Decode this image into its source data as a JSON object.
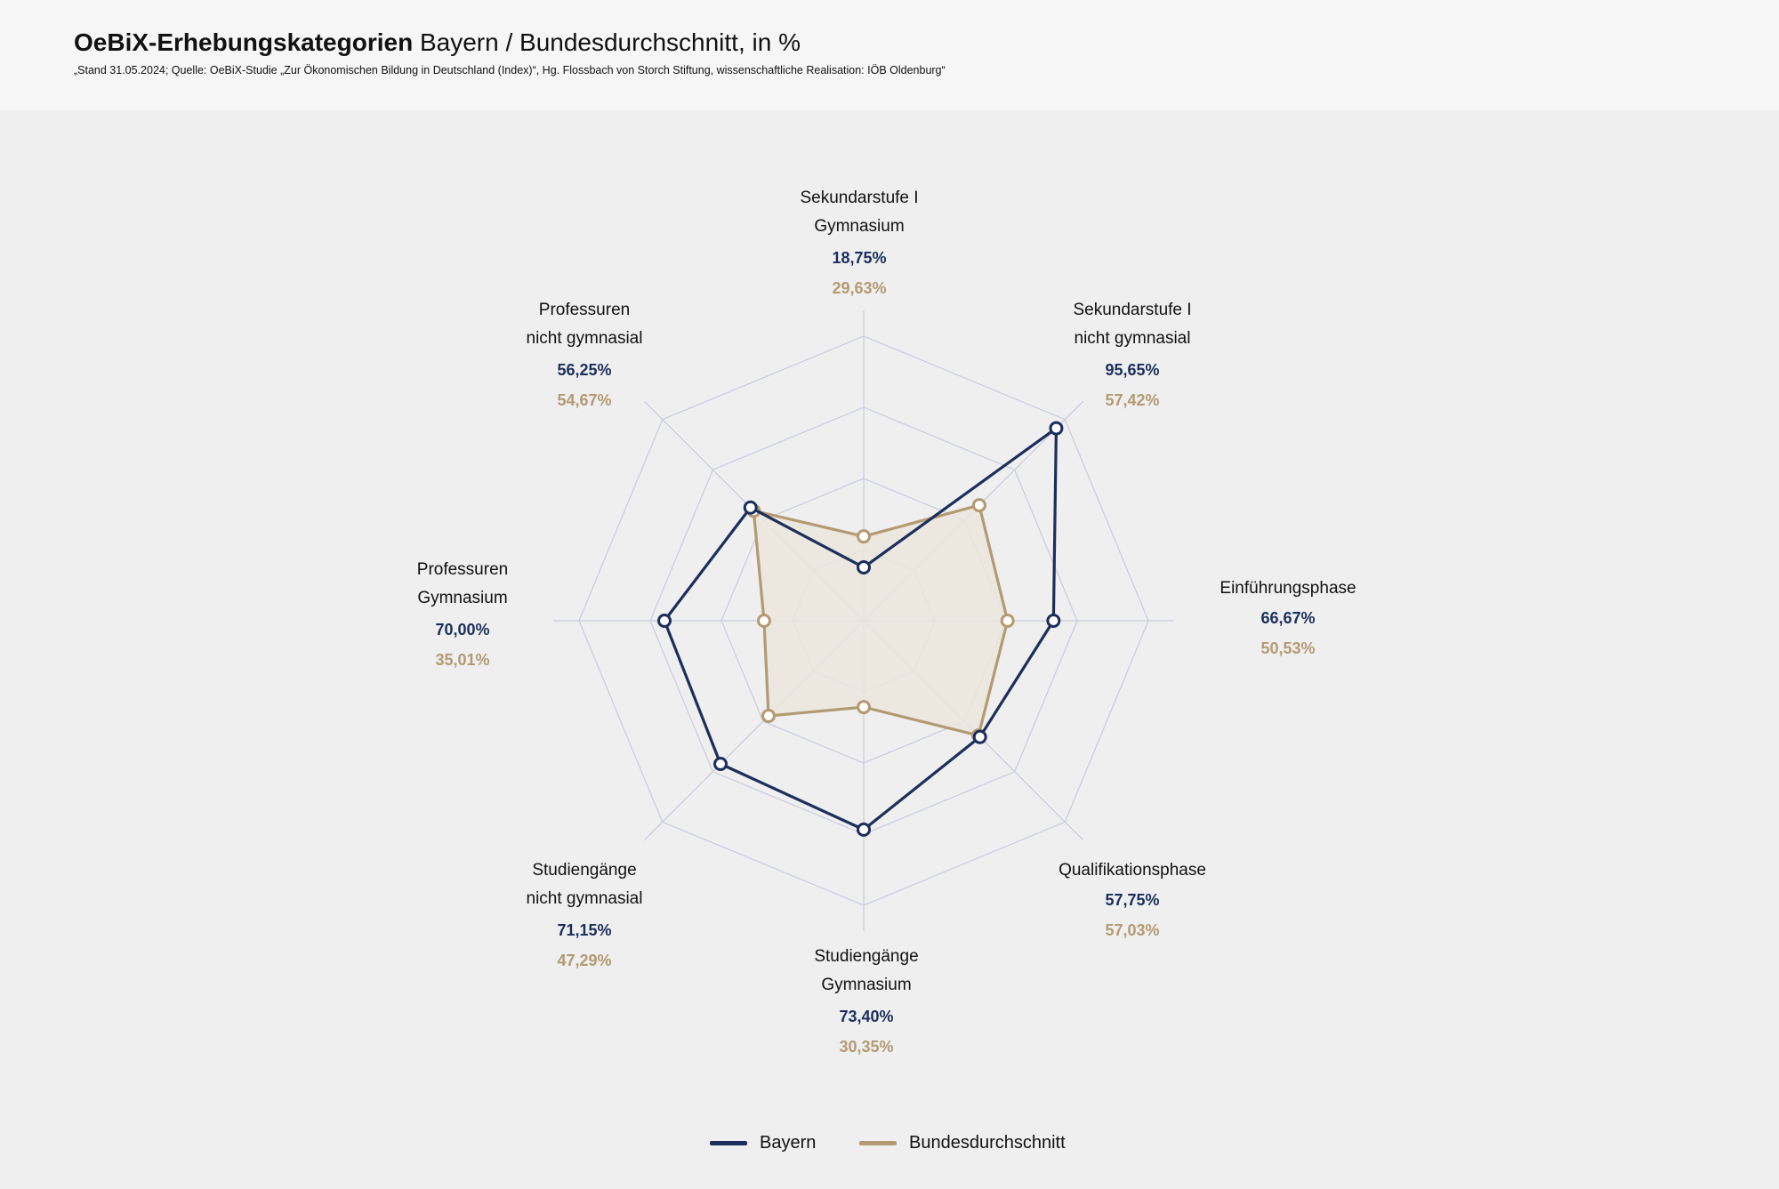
{
  "header": {
    "title_bold": "OeBiX-Erhebungskategorien",
    "title_rest": "Bayern / Bundesdurchschnitt, in %",
    "source": "„Stand 31.05.2024; Quelle: OeBiX-Studie „Zur Ökonomischen Bildung in Deutschland (Index)“, Hg. Flossbach von Storch Stiftung, wissenschaftliche Realisation: IÖB Oldenburg“"
  },
  "chart_data": {
    "type": "radar",
    "title": "OeBiX-Erhebungskategorien Bayern / Bundesdurchschnitt, in %",
    "range": [
      0,
      100
    ],
    "grid": true,
    "legend_position": "bottom-center",
    "axes": [
      {
        "label": [
          "Sekundarstufe I",
          "Gymnasium"
        ]
      },
      {
        "label": [
          "Sekundarstufe I",
          "nicht gymnasial"
        ]
      },
      {
        "label": [
          "Einführungsphase"
        ]
      },
      {
        "label": [
          "Qualifikationsphase"
        ]
      },
      {
        "label": [
          "Studiengänge",
          "Gymnasium"
        ]
      },
      {
        "label": [
          "Studiengänge",
          "nicht gymnasial"
        ]
      },
      {
        "label": [
          "Professuren",
          "Gymnasium"
        ]
      },
      {
        "label": [
          "Professuren",
          "nicht gymnasial"
        ]
      }
    ],
    "series": [
      {
        "name": "Bayern",
        "color": "#1b2e5c",
        "values": [
          18.75,
          95.65,
          66.67,
          57.75,
          73.4,
          71.15,
          70.0,
          56.25
        ],
        "labels": [
          "18,75%",
          "95,65%",
          "66,67%",
          "57,75%",
          "73,40%",
          "71,15%",
          "70,00%",
          "56,25%"
        ]
      },
      {
        "name": "Bundesdurchschnitt",
        "color": "#b39a72",
        "values": [
          29.63,
          57.42,
          50.53,
          57.03,
          30.35,
          47.29,
          35.01,
          54.67
        ],
        "labels": [
          "29,63%",
          "57,42%",
          "50,53%",
          "57,03%",
          "30,35%",
          "47,29%",
          "35,01%",
          "54,67%"
        ]
      }
    ]
  },
  "colors": {
    "grid": "#c8ccdc",
    "area_fill": "#ebe6dd",
    "background": "#efefef",
    "header_background": "#f6f6f6"
  }
}
